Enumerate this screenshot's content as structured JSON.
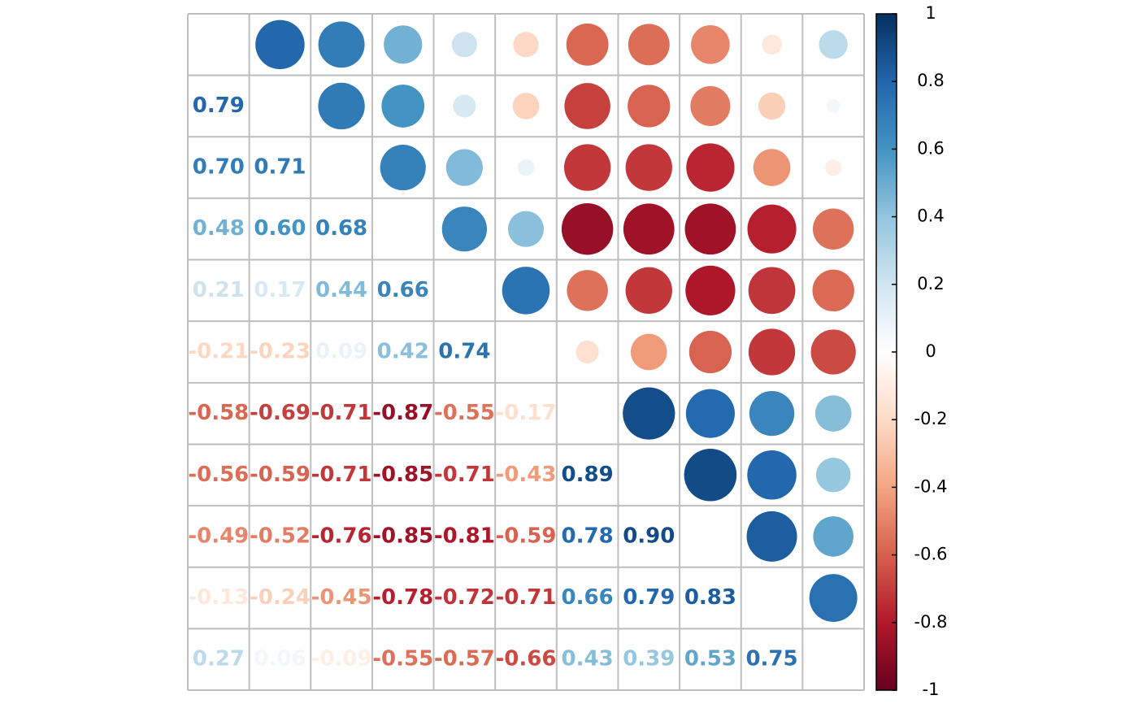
{
  "chart_data": {
    "type": "correlogram",
    "values": [
      [
        0.79
      ],
      [
        0.7,
        0.71
      ],
      [
        0.48,
        0.6,
        0.68
      ],
      [
        0.21,
        0.17,
        0.44,
        0.66
      ],
      [
        -0.21,
        -0.23,
        0.09,
        0.42,
        0.74
      ],
      [
        -0.58,
        -0.69,
        -0.71,
        -0.87,
        -0.55,
        -0.17
      ],
      [
        -0.56,
        -0.59,
        -0.71,
        -0.85,
        -0.71,
        -0.43,
        0.89
      ],
      [
        -0.49,
        -0.52,
        -0.76,
        -0.85,
        -0.81,
        -0.59,
        0.78,
        0.9
      ],
      [
        -0.13,
        -0.24,
        -0.45,
        -0.78,
        -0.72,
        -0.71,
        0.66,
        0.79,
        0.83
      ],
      [
        0.27,
        0.06,
        -0.09,
        -0.55,
        -0.57,
        -0.66,
        0.43,
        0.39,
        0.53,
        0.75
      ]
    ],
    "value_labels": [
      [
        "0.79"
      ],
      [
        "0.70",
        "0.71"
      ],
      [
        "0.48",
        "0.60",
        "0.68"
      ],
      [
        "0.21",
        "0.17",
        "0.44",
        "0.66"
      ],
      [
        "-0.21",
        "-0.23",
        "0.09",
        "0.42",
        "0.74"
      ],
      [
        "-0.58",
        "-0.69",
        "-0.71",
        "-0.87",
        "-0.55",
        "-0.17"
      ],
      [
        "-0.56",
        "-0.59",
        "-0.71",
        "-0.85",
        "-0.71",
        "-0.43",
        "0.89"
      ],
      [
        "-0.49",
        "-0.52",
        "-0.76",
        "-0.85",
        "-0.81",
        "-0.59",
        "0.78",
        "0.90"
      ],
      [
        "-0.13",
        "-0.24",
        "-0.45",
        "-0.78",
        "-0.72",
        "-0.71",
        "0.66",
        "0.79",
        "0.83"
      ],
      [
        "0.27",
        "0.06",
        "-0.09",
        "-0.55",
        "-0.57",
        "-0.66",
        "0.43",
        "0.39",
        "0.53",
        "0.75"
      ]
    ],
    "colormap": [
      "#67001F",
      "#B2182B",
      "#D6604D",
      "#F4A582",
      "#FDDBC7",
      "#FFFFFF",
      "#D1E5F0",
      "#92C5DE",
      "#4393C3",
      "#2166AC",
      "#053061"
    ],
    "clim": [
      -1,
      1
    ],
    "cticks": [
      1,
      0.8,
      0.6,
      0.4,
      0.2,
      0,
      -0.2,
      -0.4,
      -0.6,
      -0.8,
      -1
    ]
  }
}
